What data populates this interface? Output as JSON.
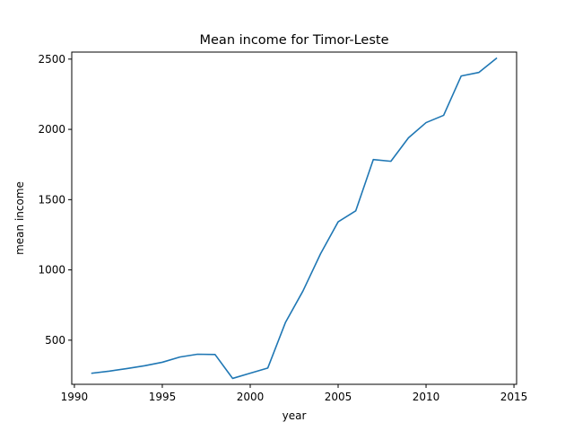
{
  "chart_data": {
    "type": "line",
    "title": "Mean income for Timor-Leste",
    "xlabel": "year",
    "ylabel": "mean income",
    "xlim": [
      1989.85,
      2015.15
    ],
    "ylim": [
      186,
      2550
    ],
    "x_ticks": [
      1990,
      1995,
      2000,
      2005,
      2010,
      2015
    ],
    "y_ticks": [
      500,
      1000,
      1500,
      2000,
      2500
    ],
    "grid": false,
    "legend": "none",
    "series": [
      {
        "color": "#1f77b4",
        "x": [
          1991,
          1992,
          1993,
          1994,
          1995,
          1996,
          1997,
          1998,
          1999,
          2000,
          2001,
          2002,
          2003,
          2004,
          2005,
          2006,
          2007,
          2008,
          2009,
          2010,
          2011,
          2012,
          2013,
          2014
        ],
        "y": [
          265,
          280,
          298,
          318,
          343,
          380,
          400,
          398,
          228,
          265,
          302,
          625,
          850,
          1115,
          1342,
          1420,
          1785,
          1773,
          1940,
          2048,
          2100,
          2380,
          2405,
          2505
        ]
      }
    ]
  }
}
